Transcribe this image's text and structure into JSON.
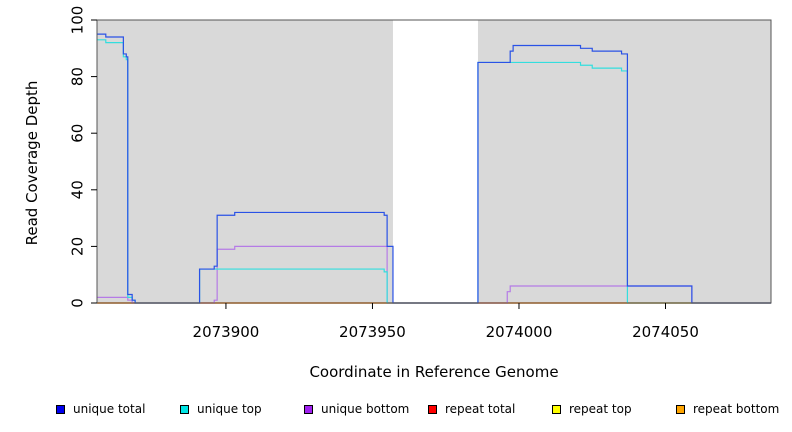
{
  "chart_data": {
    "type": "line",
    "title": "",
    "xlabel": "Coordinate in Reference Genome",
    "ylabel": "Read Coverage Depth",
    "xlim": [
      2073856,
      2074086
    ],
    "ylim": [
      0,
      100
    ],
    "xticks": [
      2073900,
      2073950,
      2074000,
      2074050
    ],
    "xtick_labels": [
      "2073900",
      "2073950",
      "2074000",
      "2074050"
    ],
    "yticks": [
      0,
      20,
      40,
      60,
      80,
      100
    ],
    "ytick_labels": [
      "0",
      "20",
      "40",
      "60",
      "80",
      "100"
    ],
    "step": true,
    "shaded_regions": [
      {
        "x0": 2073856,
        "x1": 2073957,
        "color": "#d9d9d9"
      },
      {
        "x0": 2073986,
        "x1": 2074086,
        "color": "#d9d9d9"
      }
    ],
    "legend_position": "bottom",
    "series": [
      {
        "name": "unique total",
        "color": "#0000ee",
        "line_color": "#2a52e6",
        "points": [
          [
            2073856,
            95
          ],
          [
            2073859,
            95
          ],
          [
            2073859,
            94
          ],
          [
            2073865,
            94
          ],
          [
            2073865,
            88
          ],
          [
            2073866,
            88
          ],
          [
            2073866,
            87
          ],
          [
            2073866.5,
            87
          ],
          [
            2073866.5,
            3
          ],
          [
            2073868,
            3
          ],
          [
            2073868,
            1
          ],
          [
            2073869,
            1
          ],
          [
            2073869,
            0
          ],
          [
            2073891,
            0
          ],
          [
            2073891,
            12
          ],
          [
            2073896,
            12
          ],
          [
            2073896,
            13
          ],
          [
            2073897,
            13
          ],
          [
            2073897,
            31
          ],
          [
            2073903,
            31
          ],
          [
            2073903,
            32
          ],
          [
            2073954,
            32
          ],
          [
            2073954,
            31
          ],
          [
            2073955,
            31
          ],
          [
            2073955,
            20
          ],
          [
            2073957,
            20
          ],
          [
            2073957,
            0
          ],
          [
            2073986,
            0
          ],
          [
            2073986,
            85
          ],
          [
            2073997,
            85
          ],
          [
            2073997,
            89
          ],
          [
            2073998,
            89
          ],
          [
            2073998,
            91
          ],
          [
            2074021,
            91
          ],
          [
            2074021,
            90
          ],
          [
            2074025,
            90
          ],
          [
            2074025,
            89
          ],
          [
            2074035,
            89
          ],
          [
            2074035,
            88
          ],
          [
            2074037,
            88
          ],
          [
            2074037,
            6
          ],
          [
            2074059,
            6
          ],
          [
            2074059,
            0
          ],
          [
            2074086,
            0
          ]
        ]
      },
      {
        "name": "unique top",
        "color": "#00e5e5",
        "line_color": "#33dede",
        "points": [
          [
            2073856,
            93
          ],
          [
            2073859,
            93
          ],
          [
            2073859,
            92
          ],
          [
            2073865,
            92
          ],
          [
            2073865,
            87
          ],
          [
            2073866,
            87
          ],
          [
            2073866,
            86
          ],
          [
            2073866.5,
            86
          ],
          [
            2073866.5,
            2
          ],
          [
            2073868,
            2
          ],
          [
            2073868,
            1
          ],
          [
            2073869,
            1
          ],
          [
            2073869,
            0
          ],
          [
            2073891,
            0
          ],
          [
            2073891,
            12
          ],
          [
            2073954,
            12
          ],
          [
            2073954,
            11
          ],
          [
            2073955,
            11
          ],
          [
            2073955,
            0
          ],
          [
            2073986,
            0
          ],
          [
            2073986,
            85
          ],
          [
            2074021,
            85
          ],
          [
            2074021,
            84
          ],
          [
            2074025,
            84
          ],
          [
            2074025,
            83
          ],
          [
            2074035,
            83
          ],
          [
            2074035,
            82
          ],
          [
            2074037,
            82
          ],
          [
            2074037,
            0
          ],
          [
            2074086,
            0
          ]
        ]
      },
      {
        "name": "unique bottom",
        "color": "#a020f0",
        "line_color": "#b57be6",
        "points": [
          [
            2073856,
            2
          ],
          [
            2073866.5,
            2
          ],
          [
            2073866.5,
            1
          ],
          [
            2073868,
            1
          ],
          [
            2073868,
            0
          ],
          [
            2073896,
            0
          ],
          [
            2073896,
            1
          ],
          [
            2073897,
            1
          ],
          [
            2073897,
            19
          ],
          [
            2073903,
            19
          ],
          [
            2073903,
            20
          ],
          [
            2073955,
            20
          ],
          [
            2073955,
            0
          ],
          [
            2073996,
            0
          ],
          [
            2073996,
            4
          ],
          [
            2073997,
            4
          ],
          [
            2073997,
            6
          ],
          [
            2074059,
            6
          ],
          [
            2074059,
            0
          ],
          [
            2074086,
            0
          ]
        ]
      },
      {
        "name": "repeat total",
        "color": "#ff0000",
        "line_color": "#ff0000",
        "points": [
          [
            2073856,
            0
          ],
          [
            2074086,
            0
          ]
        ]
      },
      {
        "name": "repeat top",
        "color": "#ffff00",
        "line_color": "#ffff00",
        "points": [
          [
            2073856,
            0
          ],
          [
            2074086,
            0
          ]
        ]
      },
      {
        "name": "repeat bottom",
        "color": "#ffa500",
        "line_color": "#ffa500",
        "points": [
          [
            2073856,
            0
          ],
          [
            2074086,
            0
          ]
        ]
      }
    ]
  }
}
